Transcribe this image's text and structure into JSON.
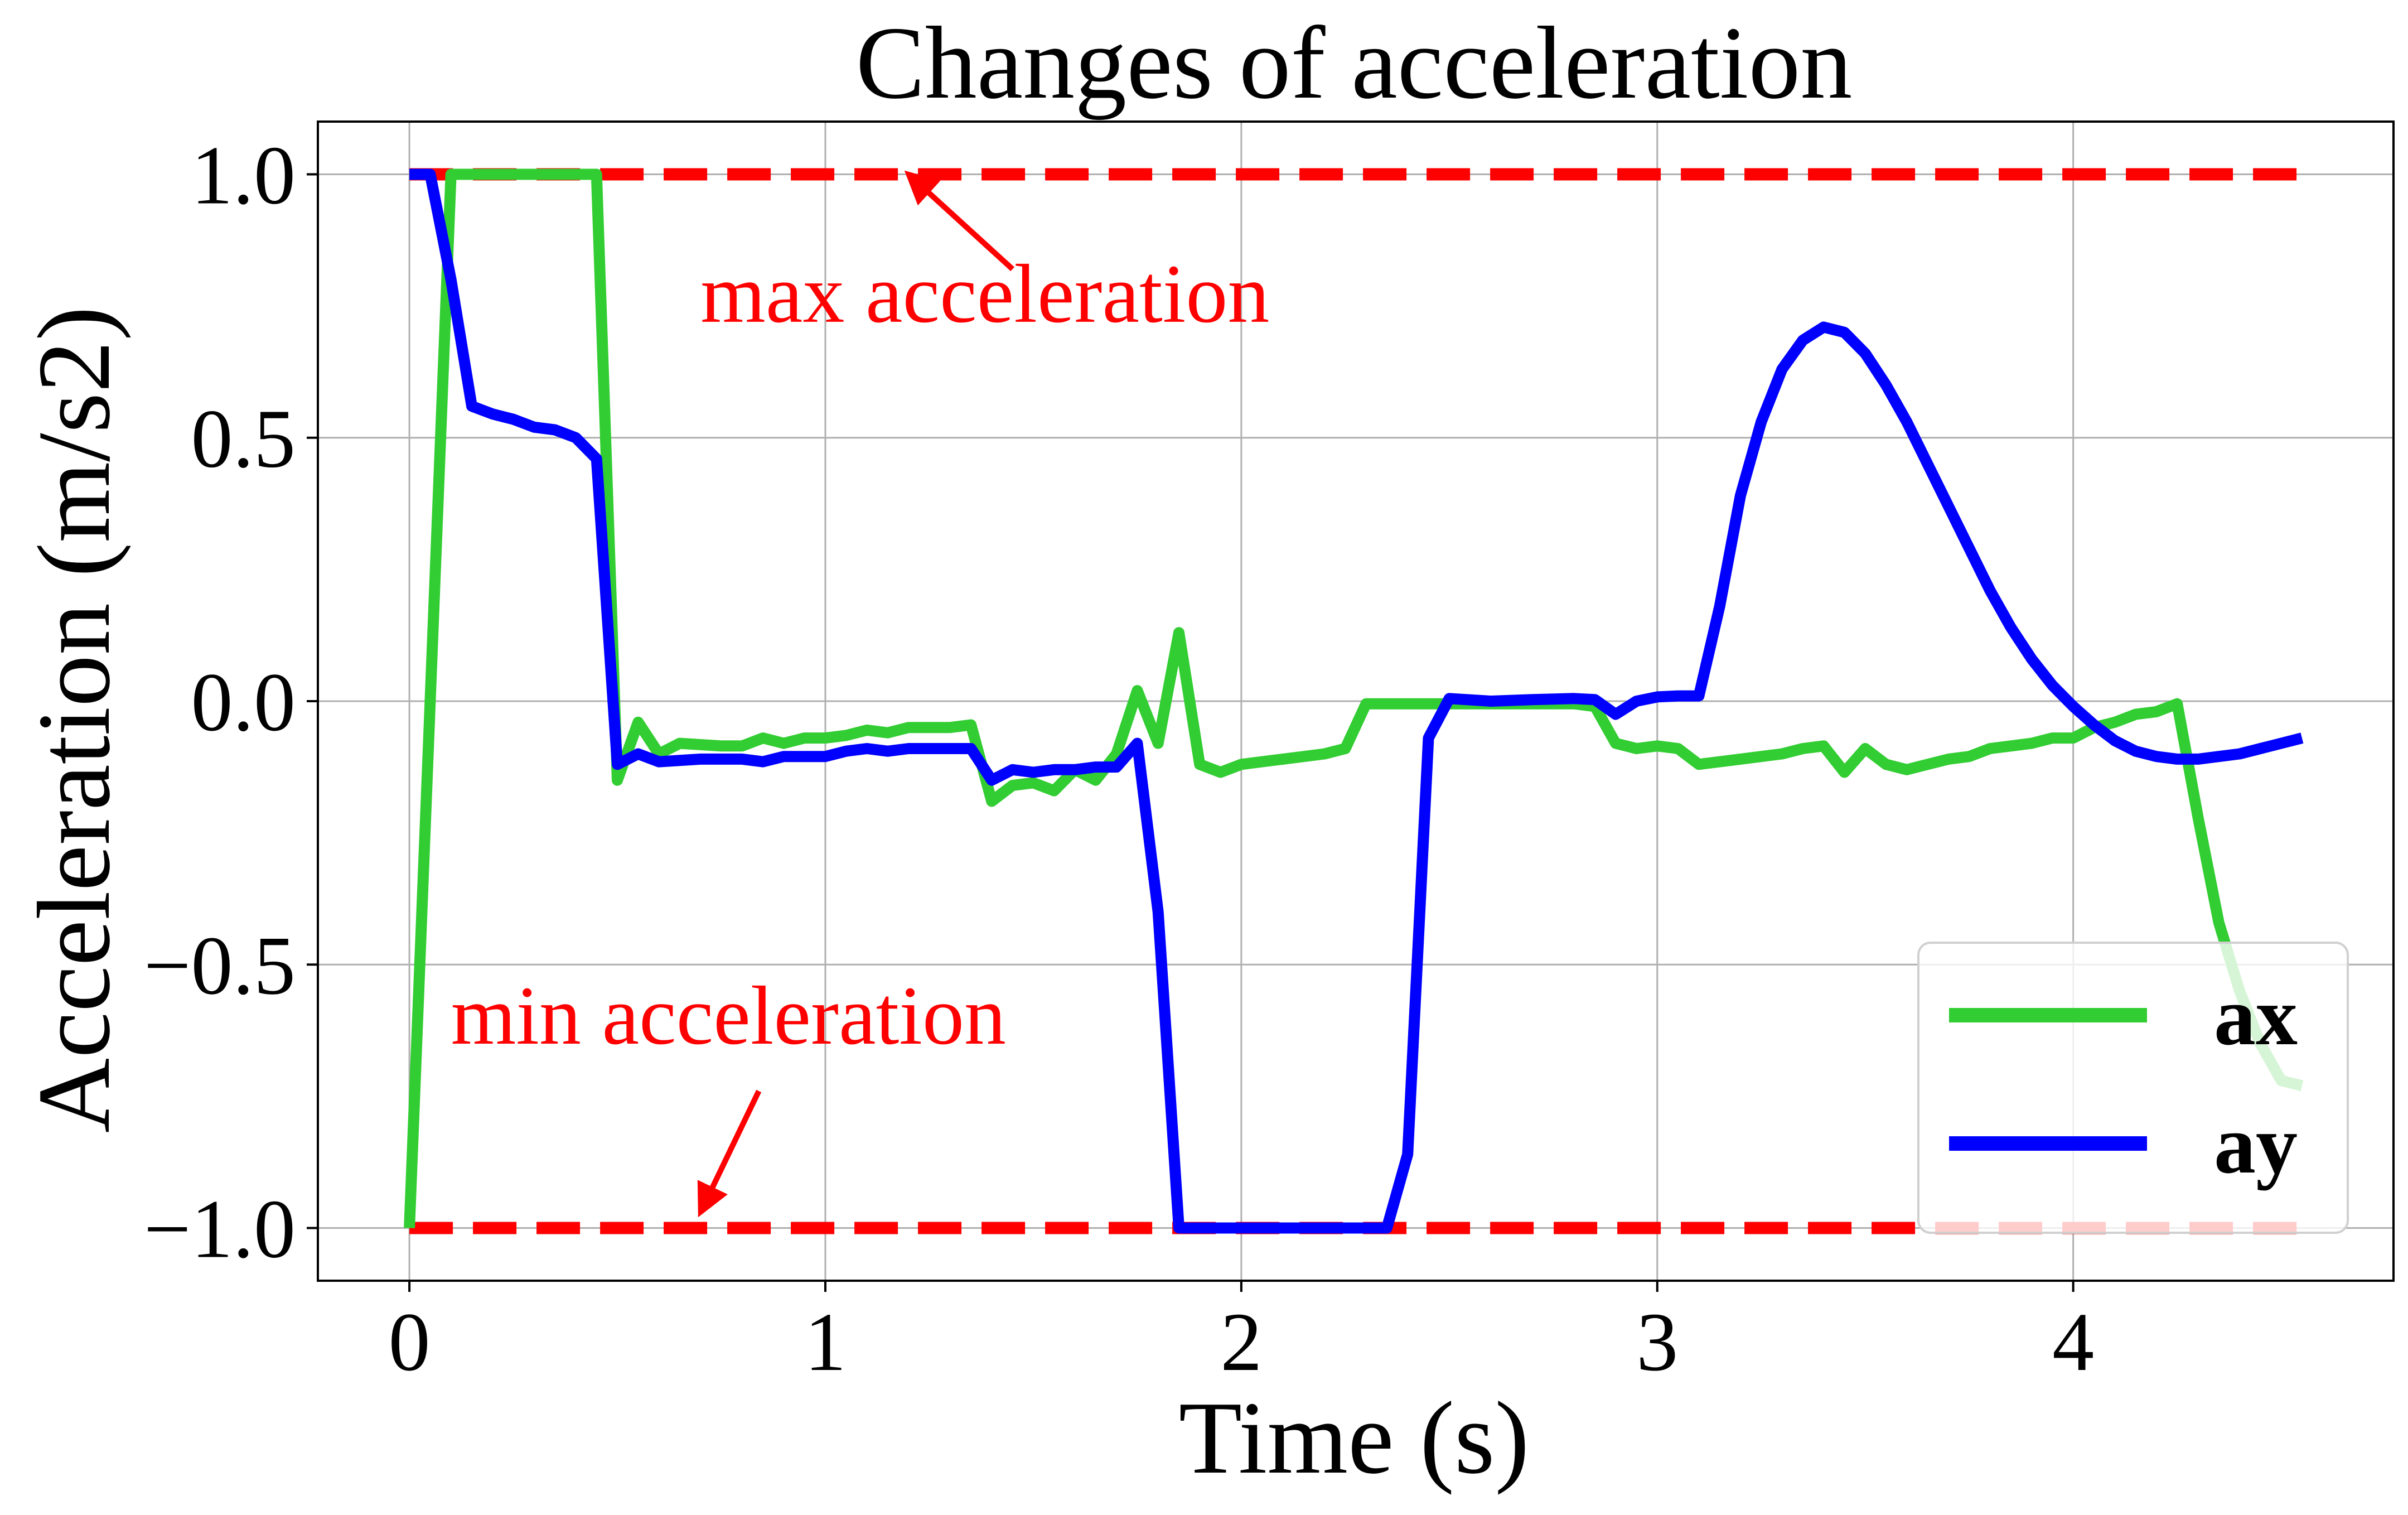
{
  "chart_data": {
    "type": "line",
    "title": "Changes of acceleration",
    "xlabel": "Time (s)",
    "ylabel": "Acceleration (m/s2)",
    "xlim": [
      -0.22,
      4.77
    ],
    "ylim": [
      -1.1,
      1.1
    ],
    "grid": true,
    "legend_placement": "lower-right",
    "x_ticks": [
      0,
      1,
      2,
      3,
      4
    ],
    "x_tick_labels": [
      "0",
      "1",
      "2",
      "3",
      "4"
    ],
    "y_ticks": [
      1.0,
      0.5,
      0.0,
      -0.5,
      -1.0
    ],
    "y_tick_labels": [
      "1.0",
      "0.5",
      "0.0",
      "−0.5",
      "−1.0"
    ],
    "limits": [
      {
        "name": "max acceleration",
        "value": 1.0,
        "color": "#ff0000",
        "style": "dashed"
      },
      {
        "name": "min acceleration",
        "value": -1.0,
        "color": "#ff0000",
        "style": "dashed"
      }
    ],
    "annotations": [
      {
        "text": "max acceleration",
        "text_xy": [
          0.7,
          0.72
        ],
        "arrow_to": [
          1.2,
          1.0
        ],
        "arrow_from": [
          1.45,
          0.82
        ],
        "color": "#ff0000"
      },
      {
        "text": "min acceleration",
        "text_xy": [
          0.1,
          -0.65
        ],
        "arrow_to": [
          0.7,
          -0.97
        ],
        "arrow_from": [
          0.84,
          -0.74
        ],
        "color": "#ff0000"
      }
    ],
    "series": [
      {
        "name": "ax",
        "color": "#32cd32",
        "points": [
          [
            0.0,
            -1.0
          ],
          [
            0.1,
            1.0
          ],
          [
            0.2,
            1.0
          ],
          [
            0.3,
            1.0
          ],
          [
            0.4,
            1.0
          ],
          [
            0.45,
            1.0
          ],
          [
            0.5,
            -0.15
          ],
          [
            0.55,
            -0.04
          ],
          [
            0.6,
            -0.1
          ],
          [
            0.65,
            -0.08
          ],
          [
            0.75,
            -0.085
          ],
          [
            0.8,
            -0.085
          ],
          [
            0.85,
            -0.07
          ],
          [
            0.9,
            -0.08
          ],
          [
            0.95,
            -0.07
          ],
          [
            1.0,
            -0.07
          ],
          [
            1.05,
            -0.065
          ],
          [
            1.1,
            -0.055
          ],
          [
            1.15,
            -0.06
          ],
          [
            1.2,
            -0.05
          ],
          [
            1.3,
            -0.05
          ],
          [
            1.35,
            -0.045
          ],
          [
            1.4,
            -0.19
          ],
          [
            1.45,
            -0.16
          ],
          [
            1.5,
            -0.155
          ],
          [
            1.55,
            -0.17
          ],
          [
            1.6,
            -0.13
          ],
          [
            1.65,
            -0.15
          ],
          [
            1.7,
            -0.1
          ],
          [
            1.75,
            0.02
          ],
          [
            1.8,
            -0.08
          ],
          [
            1.85,
            0.13
          ],
          [
            1.9,
            -0.12
          ],
          [
            1.95,
            -0.135
          ],
          [
            2.0,
            -0.12
          ],
          [
            2.1,
            -0.11
          ],
          [
            2.2,
            -0.1
          ],
          [
            2.25,
            -0.09
          ],
          [
            2.3,
            -0.005
          ],
          [
            2.4,
            -0.005
          ],
          [
            2.5,
            -0.005
          ],
          [
            2.6,
            -0.005
          ],
          [
            2.7,
            -0.005
          ],
          [
            2.8,
            -0.005
          ],
          [
            2.85,
            -0.01
          ],
          [
            2.9,
            -0.08
          ],
          [
            2.95,
            -0.09
          ],
          [
            3.0,
            -0.085
          ],
          [
            3.05,
            -0.09
          ],
          [
            3.1,
            -0.12
          ],
          [
            3.15,
            -0.115
          ],
          [
            3.2,
            -0.11
          ],
          [
            3.25,
            -0.105
          ],
          [
            3.3,
            -0.1
          ],
          [
            3.35,
            -0.09
          ],
          [
            3.4,
            -0.085
          ],
          [
            3.45,
            -0.135
          ],
          [
            3.5,
            -0.09
          ],
          [
            3.55,
            -0.12
          ],
          [
            3.6,
            -0.13
          ],
          [
            3.65,
            -0.12
          ],
          [
            3.7,
            -0.11
          ],
          [
            3.75,
            -0.105
          ],
          [
            3.8,
            -0.09
          ],
          [
            3.85,
            -0.085
          ],
          [
            3.9,
            -0.08
          ],
          [
            3.95,
            -0.07
          ],
          [
            4.0,
            -0.07
          ],
          [
            4.05,
            -0.05
          ],
          [
            4.1,
            -0.04
          ],
          [
            4.15,
            -0.025
          ],
          [
            4.2,
            -0.02
          ],
          [
            4.25,
            -0.005
          ],
          [
            4.3,
            -0.22
          ],
          [
            4.35,
            -0.42
          ],
          [
            4.4,
            -0.55
          ],
          [
            4.45,
            -0.65
          ],
          [
            4.5,
            -0.72
          ],
          [
            4.55,
            -0.73
          ]
        ]
      },
      {
        "name": "ay",
        "color": "#0000ff",
        "points": [
          [
            0.0,
            1.0
          ],
          [
            0.05,
            1.0
          ],
          [
            0.1,
            0.8
          ],
          [
            0.15,
            0.56
          ],
          [
            0.2,
            0.545
          ],
          [
            0.25,
            0.535
          ],
          [
            0.3,
            0.52
          ],
          [
            0.35,
            0.515
          ],
          [
            0.4,
            0.5
          ],
          [
            0.45,
            0.46
          ],
          [
            0.5,
            -0.12
          ],
          [
            0.55,
            -0.1
          ],
          [
            0.6,
            -0.115
          ],
          [
            0.7,
            -0.11
          ],
          [
            0.8,
            -0.11
          ],
          [
            0.85,
            -0.115
          ],
          [
            0.9,
            -0.105
          ],
          [
            1.0,
            -0.105
          ],
          [
            1.05,
            -0.095
          ],
          [
            1.1,
            -0.09
          ],
          [
            1.15,
            -0.095
          ],
          [
            1.2,
            -0.09
          ],
          [
            1.3,
            -0.09
          ],
          [
            1.35,
            -0.09
          ],
          [
            1.4,
            -0.15
          ],
          [
            1.45,
            -0.13
          ],
          [
            1.5,
            -0.135
          ],
          [
            1.55,
            -0.13
          ],
          [
            1.6,
            -0.13
          ],
          [
            1.65,
            -0.125
          ],
          [
            1.7,
            -0.125
          ],
          [
            1.75,
            -0.08
          ],
          [
            1.8,
            -0.4
          ],
          [
            1.85,
            -1.0
          ],
          [
            1.9,
            -1.0
          ],
          [
            2.0,
            -1.0
          ],
          [
            2.1,
            -1.0
          ],
          [
            2.2,
            -1.0
          ],
          [
            2.3,
            -1.0
          ],
          [
            2.35,
            -1.0
          ],
          [
            2.4,
            -0.86
          ],
          [
            2.45,
            -0.07
          ],
          [
            2.5,
            0.005
          ],
          [
            2.6,
            0.0
          ],
          [
            2.7,
            0.003
          ],
          [
            2.8,
            0.005
          ],
          [
            2.85,
            0.003
          ],
          [
            2.9,
            -0.025
          ],
          [
            2.95,
            0.0
          ],
          [
            3.0,
            0.008
          ],
          [
            3.05,
            0.01
          ],
          [
            3.1,
            0.01
          ],
          [
            3.15,
            0.18
          ],
          [
            3.2,
            0.39
          ],
          [
            3.25,
            0.53
          ],
          [
            3.3,
            0.63
          ],
          [
            3.35,
            0.685
          ],
          [
            3.4,
            0.71
          ],
          [
            3.45,
            0.7
          ],
          [
            3.5,
            0.66
          ],
          [
            3.55,
            0.6
          ],
          [
            3.6,
            0.53
          ],
          [
            3.65,
            0.45
          ],
          [
            3.7,
            0.37
          ],
          [
            3.75,
            0.29
          ],
          [
            3.8,
            0.21
          ],
          [
            3.85,
            0.14
          ],
          [
            3.9,
            0.08
          ],
          [
            3.95,
            0.03
          ],
          [
            4.0,
            -0.01
          ],
          [
            4.05,
            -0.045
          ],
          [
            4.1,
            -0.075
          ],
          [
            4.15,
            -0.095
          ],
          [
            4.2,
            -0.105
          ],
          [
            4.25,
            -0.11
          ],
          [
            4.3,
            -0.11
          ],
          [
            4.35,
            -0.105
          ],
          [
            4.4,
            -0.1
          ],
          [
            4.45,
            -0.09
          ],
          [
            4.5,
            -0.08
          ],
          [
            4.55,
            -0.07
          ]
        ]
      }
    ]
  }
}
